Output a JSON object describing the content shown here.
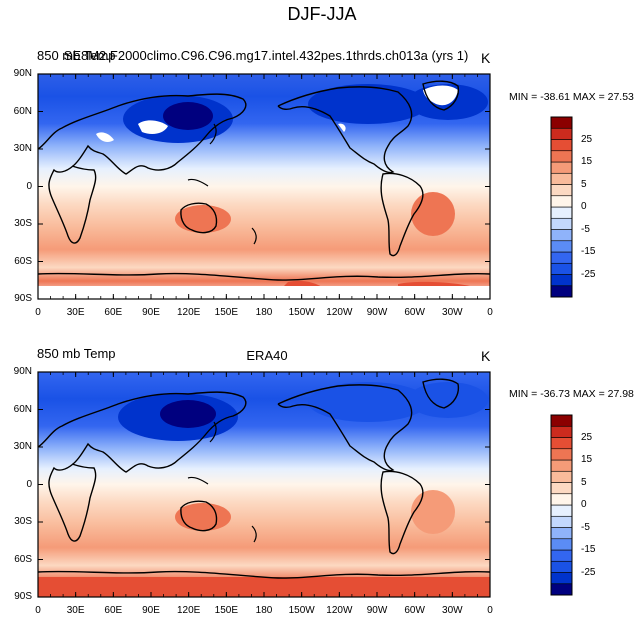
{
  "figure": {
    "main_title": "DJF-JJA",
    "lat_labels": [
      "90N",
      "60N",
      "30N",
      "0",
      "30S",
      "60S",
      "90S"
    ],
    "lon_labels": [
      "0",
      "30E",
      "60E",
      "90E",
      "120E",
      "150E",
      "180",
      "150W",
      "120W",
      "90W",
      "60W",
      "30W",
      "0"
    ]
  },
  "colorbar": {
    "labels": [
      "25",
      "15",
      "5",
      "0",
      "-5",
      "-15",
      "-25"
    ],
    "colors": [
      "#00007f",
      "#0033cc",
      "#1a52e6",
      "#3366f0",
      "#5b8cf5",
      "#8fb3fa",
      "#c3d8fd",
      "#e6f0fe",
      "#fff5ea",
      "#fcd9c2",
      "#f9bb9b",
      "#f59b78",
      "#ee7553",
      "#e54e34",
      "#cc2b1e",
      "#8b0000"
    ]
  },
  "panels": [
    {
      "variable": "850 mb Temp",
      "case": "SE8M2.F2000climo.C96.C96.mg17.intel.432pes.1thrds.ch013a (yrs 1)",
      "units": "K",
      "min_max": "MIN = -38.61 MAX =  27.53"
    },
    {
      "variable": "850 mb Temp",
      "case": "ERA40",
      "units": "K",
      "min_max": "MIN = -36.73 MAX =  27.98"
    }
  ]
}
